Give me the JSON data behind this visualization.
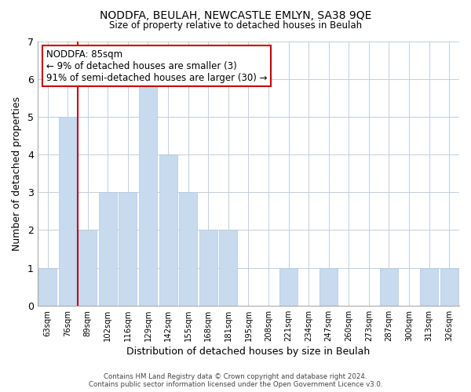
{
  "title": "NODDFA, BEULAH, NEWCASTLE EMLYN, SA38 9QE",
  "subtitle": "Size of property relative to detached houses in Beulah",
  "xlabel": "Distribution of detached houses by size in Beulah",
  "ylabel": "Number of detached properties",
  "bar_color": "#c8daed",
  "bar_edge_color": "#b0c8e0",
  "annotation_box_color": "#ffffff",
  "annotation_box_edge": "#cc0000",
  "annotation_title": "NODDFA: 85sqm",
  "annotation_line1": "← 9% of detached houses are smaller (3)",
  "annotation_line2": "91% of semi-detached houses are larger (30) →",
  "marker_line_color": "#cc0000",
  "marker_x_label": "89sqm",
  "categories": [
    "63sqm",
    "76sqm",
    "89sqm",
    "102sqm",
    "116sqm",
    "129sqm",
    "142sqm",
    "155sqm",
    "168sqm",
    "181sqm",
    "195sqm",
    "208sqm",
    "221sqm",
    "234sqm",
    "247sqm",
    "260sqm",
    "273sqm",
    "287sqm",
    "300sqm",
    "313sqm",
    "326sqm"
  ],
  "values": [
    1,
    5,
    2,
    3,
    3,
    6,
    4,
    3,
    2,
    2,
    0,
    0,
    1,
    0,
    1,
    0,
    0,
    1,
    0,
    1,
    1
  ],
  "ylim": [
    0,
    7
  ],
  "yticks": [
    0,
    1,
    2,
    3,
    4,
    5,
    6,
    7
  ],
  "footer_line1": "Contains HM Land Registry data © Crown copyright and database right 2024.",
  "footer_line2": "Contains public sector information licensed under the Open Government Licence v3.0.",
  "background_color": "#ffffff",
  "grid_color": "#c0d0e0"
}
